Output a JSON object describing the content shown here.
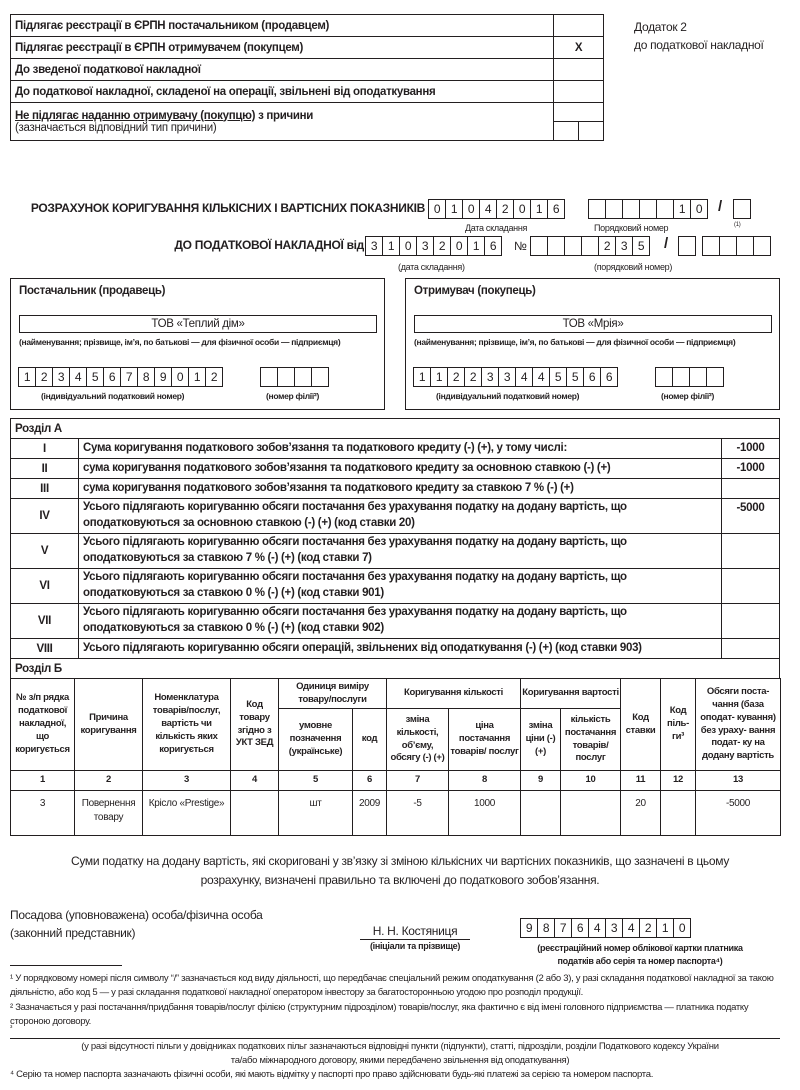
{
  "top_table": {
    "rows": [
      {
        "label": "Підлягає реєстрації в ЄРПН постачальником (продавцем)",
        "mark": ""
      },
      {
        "label": "Підлягає реєстрації в ЄРПН отримувачем (покупцем)",
        "mark": "X"
      },
      {
        "label": "До зведеної податкової накладної",
        "mark": ""
      },
      {
        "label": "До податкової накладної, складеної на операції, звільнені від оподаткування",
        "mark": ""
      }
    ],
    "not_subject_bold": "Не підлягає наданню отримувачу (покупцю)",
    "not_subject_rest": " з причини",
    "not_subject_note": "(зазначається відповідний тип причини)"
  },
  "annex": {
    "line1": "Додаток 2",
    "line2": "до податкової накладної"
  },
  "header": {
    "title": "РОЗРАХУНОК КОРИГУВАННЯ КІЛЬКІСНИХ І ВАРТІСНИХ ПОКАЗНИКІВ",
    "date_digits": [
      "0",
      "1",
      "0",
      "4",
      "2",
      "0",
      "1",
      "6"
    ],
    "number_digits": [
      "",
      "",
      "",
      "",
      "",
      "1",
      "0"
    ],
    "slash": "/",
    "suffix": "",
    "date_label": "Дата складання",
    "number_label": "Порядковий номер",
    "footnote_mark": "(1)",
    "ref_title": "ДО ПОДАТКОВОЇ НАКЛАДНОЇ від",
    "ref_date_digits": [
      "3",
      "1",
      "0",
      "3",
      "2",
      "0",
      "1",
      "6"
    ],
    "no_sign": "№",
    "ref_number_digits": [
      "",
      "",
      "",
      "",
      "2",
      "3",
      "5"
    ],
    "ref_suffix": "",
    "ref_extra": [
      "",
      "",
      "",
      ""
    ],
    "ref_date_label": "(дата складання)",
    "ref_number_label": "(порядковий номер)"
  },
  "supplier": {
    "heading": "Постачальник (продавець)",
    "name": "ТОВ «Теплий дім»",
    "name_label": "(найменування; прізвище, ім’я, по батькові — для фізичної особи — підприємця)",
    "ipn": [
      "1",
      "2",
      "3",
      "4",
      "5",
      "6",
      "7",
      "8",
      "9",
      "0",
      "1",
      "2"
    ],
    "branch": [
      "",
      "",
      "",
      ""
    ],
    "ipn_label": "(індивідуальний податковий номер)",
    "branch_label": "(номер філії²)"
  },
  "recipient": {
    "heading": "Отримувач (покупець)",
    "name": "ТОВ «Мрія»",
    "name_label": "(найменування; прізвище, ім’я, по батькові — для фізичної особи — підприємця)",
    "ipn": [
      "1",
      "1",
      "2",
      "2",
      "3",
      "3",
      "4",
      "4",
      "5",
      "5",
      "6",
      "6"
    ],
    "branch": [
      "",
      "",
      "",
      ""
    ],
    "ipn_label": "(індивідуальний податковий номер)",
    "branch_label": "(номер філії²)"
  },
  "section_a": {
    "title": "Розділ А",
    "rows": [
      {
        "num": "I",
        "text": "Сума коригування податкового зобов’язання та податкового кредиту (-) (+), у тому числі:",
        "value": "-1000"
      },
      {
        "num": "II",
        "text": "сума коригування податкового зобов’язання та податкового кредиту за основною ставкою (-) (+)",
        "value": "-1000"
      },
      {
        "num": "III",
        "text": "сума коригування податкового зобов’язання та податкового кредиту за ставкою 7 % (-) (+)",
        "value": ""
      },
      {
        "num": "IV",
        "text": "Усього підлягають коригуванню обсяги постачання без урахування податку на додану вартість, що оподатковуються за основною ставкою (-) (+) (код ставки 20)",
        "value": "-5000"
      },
      {
        "num": "V",
        "text": "Усього підлягають коригуванню обсяги постачання без урахування податку на додану вартість, що оподатковуються за ставкою 7 % (-) (+) (код ставки 7)",
        "value": ""
      },
      {
        "num": "VI",
        "text": "Усього підлягають коригуванню обсяги постачання без урахування податку на додану вартість, що оподатковуються за ставкою 0 % (-) (+) (код ставки 901)",
        "value": ""
      },
      {
        "num": "VII",
        "text": "Усього підлягають коригуванню обсяги постачання без урахування податку на додану вартість, що оподатковуються за ставкою 0 % (-) (+) (код ставки 902)",
        "value": ""
      },
      {
        "num": "VIII",
        "text": "Усього підлягають коригуванню обсяги операцій, звільнених від оподаткування (-) (+) (код ставки 903)",
        "value": ""
      }
    ]
  },
  "section_b": {
    "title": "Розділ Б",
    "headers": {
      "c1": "№ з/п рядка податкової накладної, що коригується",
      "c2": "Причина коригування",
      "c3": "Номенклатура товарів/послуг, вартість чи кількість яких коригується",
      "c4": "Код товару згідно з УКТ ЗЕД",
      "g_unit": "Одиниця виміру товару/послуги",
      "c5": "умовне позначення (українське)",
      "c6": "код",
      "g_qty": "Коригування кількості",
      "c7": "зміна кількості, об’єму, обсягу (-) (+)",
      "c8": "ціна постачання товарів/ послуг",
      "g_val": "Коригування вартості",
      "c9": "зміна ціни (-) (+)",
      "c10": "кількість постачання товарів/ послуг",
      "c11": "Код ставки",
      "c12": "Код піль- ги³",
      "c13": "Обсяги поста- чання (база оподат- кування) без ураху- вання подат- ку на додану вартість"
    },
    "numbers": [
      "1",
      "2",
      "3",
      "4",
      "5",
      "6",
      "7",
      "8",
      "9",
      "10",
      "11",
      "12",
      "13"
    ],
    "rows": [
      [
        "3",
        "Повернення товару",
        "Крісло «Prestige»",
        "",
        "шт",
        "2009",
        "-5",
        "1000",
        "",
        "",
        "20",
        "",
        "-5000"
      ]
    ]
  },
  "statement": "Суми податку на додану вартість, які скориговані у зв’язку зі зміною кількісних чи вартісних показників, що зазначені в цьому розрахунку, визначені правильно та включені до податкового зобов’язання.",
  "signature": {
    "role_line1": "Посадова (уповноважена) особа/фізична особа",
    "role_line2": "(законний представник)",
    "name": "Н. Н. Костяниця",
    "name_label": "(ініціали та прізвище)",
    "reg_digits": [
      "9",
      "8",
      "7",
      "6",
      "4",
      "3",
      "4",
      "2",
      "1",
      "0"
    ],
    "reg_label": "(реєстраційний номер облікової картки платника податків або серія та номер паспорта⁴)"
  },
  "footnotes": {
    "f1": "¹ У порядковому номері після символу “/” зазначається код виду діяльності, що передбачає спеціальний режим оподаткування (2 або 3), у разі складання податкової накладної за такою діяльністю, або код 5 — у разі складання податкової накладної оператором інвестору за багатосторонньою угодою про розподіл продукції.",
    "f2": "² Зазначається у разі постачання/придбання товарів/послуг філією (структурним підрозділом) товарів/послуг, яка фактично є від імені головного підприємства — платника податку стороною договору.",
    "f3_mark": "³",
    "f3": "(у разі відсутності пільги у довідниках податкових пільг зазначаються відповідні пункти (підпункти), статті, підрозділи, розділи Податкового кодексу України та/або міжнародного договору, якими передбачено звільнення від оподаткування)",
    "f4": "⁴ Серію та номер паспорта зазначають фізичні особи, які мають відмітку у паспорті про право здійснювати будь-які платежі за серією та номером паспорта."
  }
}
